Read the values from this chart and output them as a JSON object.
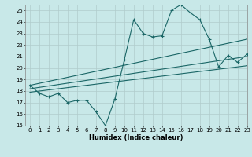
{
  "bg_color": "#c8e8e8",
  "grid_color": "#b0cccc",
  "line_color": "#1a6666",
  "x_min": -0.5,
  "x_max": 23,
  "y_min": 15,
  "y_max": 25.5,
  "xlabel": "Humidex (Indice chaleur)",
  "main_series_x": [
    0,
    1,
    2,
    3,
    4,
    5,
    6,
    7,
    8,
    9,
    10,
    11,
    12,
    13,
    14,
    15,
    16,
    17,
    18,
    19,
    20,
    21,
    22,
    23
  ],
  "main_series_y": [
    18.5,
    17.8,
    17.5,
    17.8,
    17.0,
    17.2,
    17.2,
    16.2,
    15.0,
    17.3,
    20.7,
    24.2,
    23.0,
    22.7,
    22.8,
    25.0,
    25.5,
    24.8,
    24.2,
    22.5,
    20.1,
    21.1,
    20.5,
    21.2
  ],
  "trend1_x": [
    0,
    23
  ],
  "trend1_y": [
    18.5,
    22.5
  ],
  "trend2_x": [
    0,
    23
  ],
  "trend2_y": [
    18.2,
    21.0
  ],
  "trend3_x": [
    0,
    23
  ],
  "trend3_y": [
    17.9,
    20.2
  ],
  "yticks": [
    15,
    16,
    17,
    18,
    19,
    20,
    21,
    22,
    23,
    24,
    25
  ],
  "xticks": [
    0,
    1,
    2,
    3,
    4,
    5,
    6,
    7,
    8,
    9,
    10,
    11,
    12,
    13,
    14,
    15,
    16,
    17,
    18,
    19,
    20,
    21,
    22,
    23
  ],
  "tick_fontsize": 5.0,
  "xlabel_fontsize": 6.0
}
